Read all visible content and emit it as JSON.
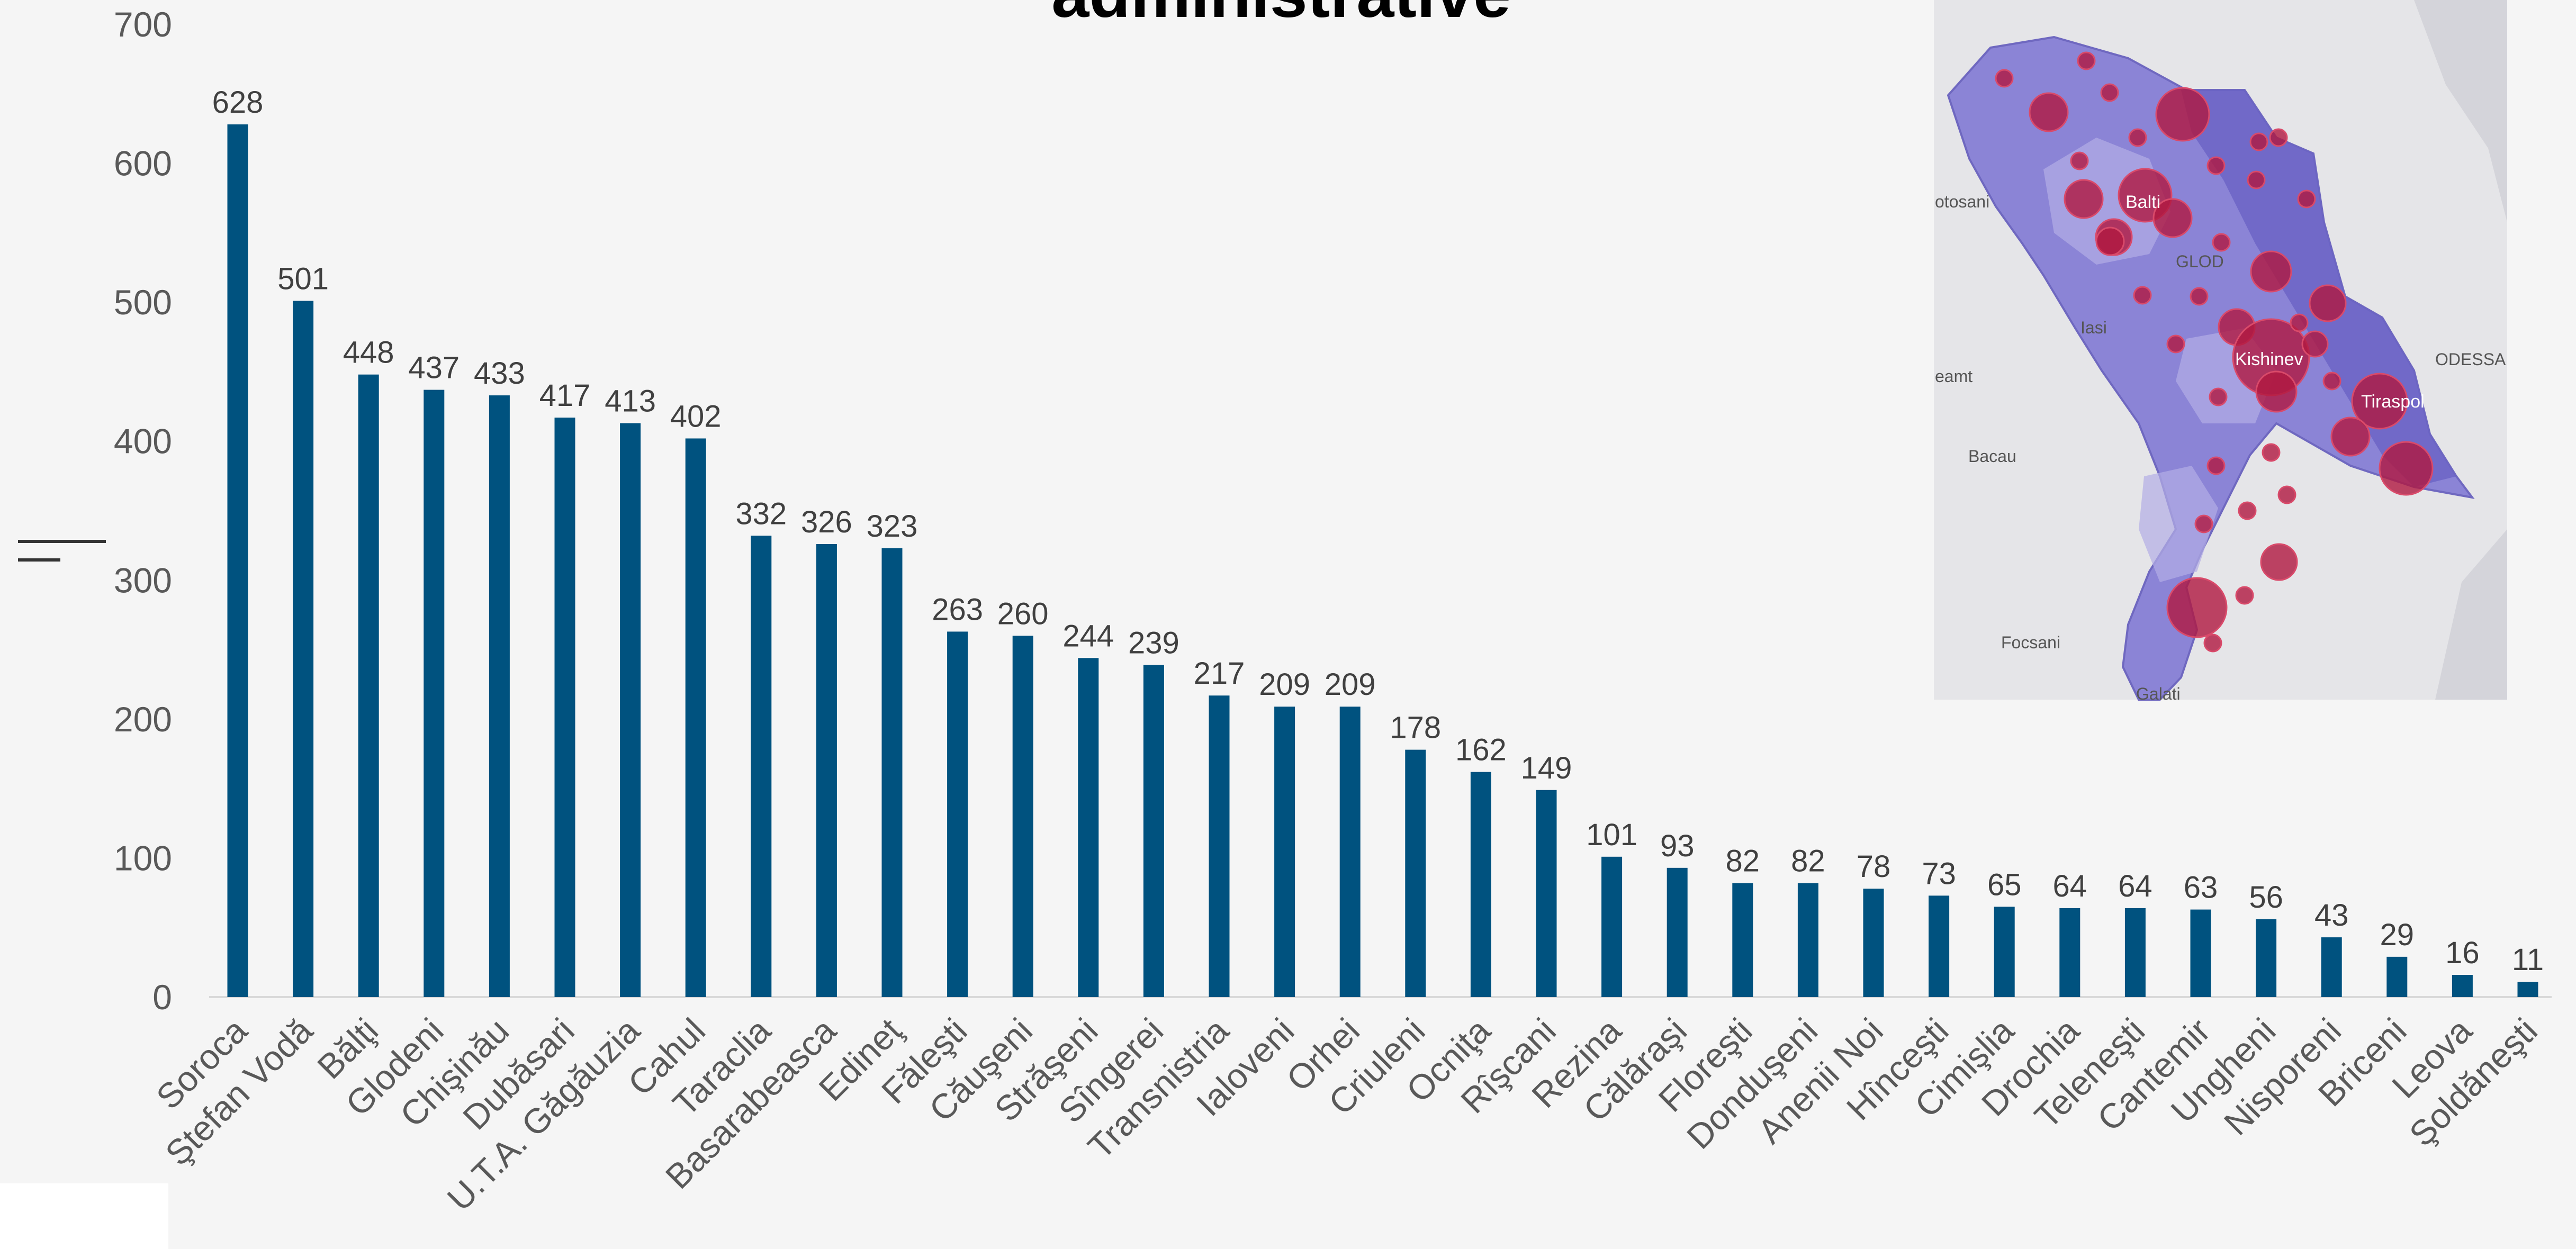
{
  "chart_data": {
    "type": "bar",
    "title": "administrative",
    "xlabel": "",
    "ylabel": "",
    "ylim": [
      0,
      700
    ],
    "yticks": [
      0,
      100,
      200,
      300,
      400,
      500,
      600,
      700
    ],
    "grid": false,
    "legend": "none",
    "bar_color": "#00527f",
    "categories": [
      "Soroca",
      "Ştefan Vodă",
      "Bălţi",
      "Glodeni",
      "Chişinău",
      "Dubăsari",
      "U.T.A. Găgăuzia",
      "Cahul",
      "Taraclia",
      "Basarabeasca",
      "Edineţ",
      "Făleşti",
      "Căuşeni",
      "Străşeni",
      "Sîngerei",
      "Transnistria",
      "Ialoveni",
      "Orhei",
      "Criuleni",
      "Ocniţa",
      "Rîşcani",
      "Rezina",
      "Călăraşi",
      "Floreşti",
      "Donduşeni",
      "Anenii Noi",
      "Hînceşti",
      "Cimişlia",
      "Drochia",
      "Teleneşti",
      "Cantemir",
      "Ungheni",
      "Nisporeni",
      "Briceni",
      "Leova",
      "Şoldăneşti"
    ],
    "values": [
      628,
      501,
      448,
      437,
      433,
      417,
      413,
      402,
      332,
      326,
      323,
      263,
      260,
      244,
      239,
      217,
      209,
      209,
      178,
      162,
      149,
      101,
      93,
      82,
      82,
      78,
      73,
      65,
      64,
      64,
      63,
      56,
      43,
      29,
      16,
      11
    ]
  },
  "map": {
    "labels": [
      "otosani",
      "Balti",
      "Iasi",
      "Kishinev",
      "eamt",
      "Tiraspol",
      "ODESSA",
      "Bacau",
      "Focsani",
      "Galati",
      "GLOD"
    ],
    "fill_color": "#8b84d6",
    "bubble_color": "#b01840"
  }
}
